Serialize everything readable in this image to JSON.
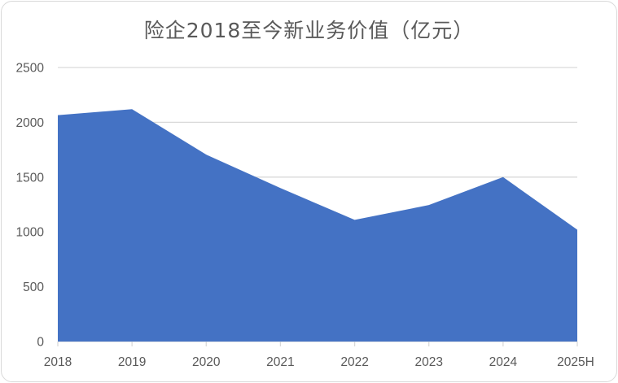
{
  "chart_data": {
    "type": "area",
    "title": "险企2018至今新业务价值（亿元）",
    "xlabel": "",
    "ylabel": "",
    "categories": [
      "2018",
      "2019",
      "2020",
      "2021",
      "2022",
      "2023",
      "2024",
      "2025H"
    ],
    "series": [
      {
        "values": [
          2065,
          2120,
          1705,
          1400,
          1110,
          1245,
          1500,
          1020
        ]
      }
    ],
    "ylim": [
      0,
      2500
    ],
    "yticks": [
      0,
      500,
      1000,
      1500,
      2000,
      2500
    ],
    "grid": true,
    "legend": "none",
    "fill_color": "#4472c4",
    "grid_color": "#d9d9d9"
  }
}
